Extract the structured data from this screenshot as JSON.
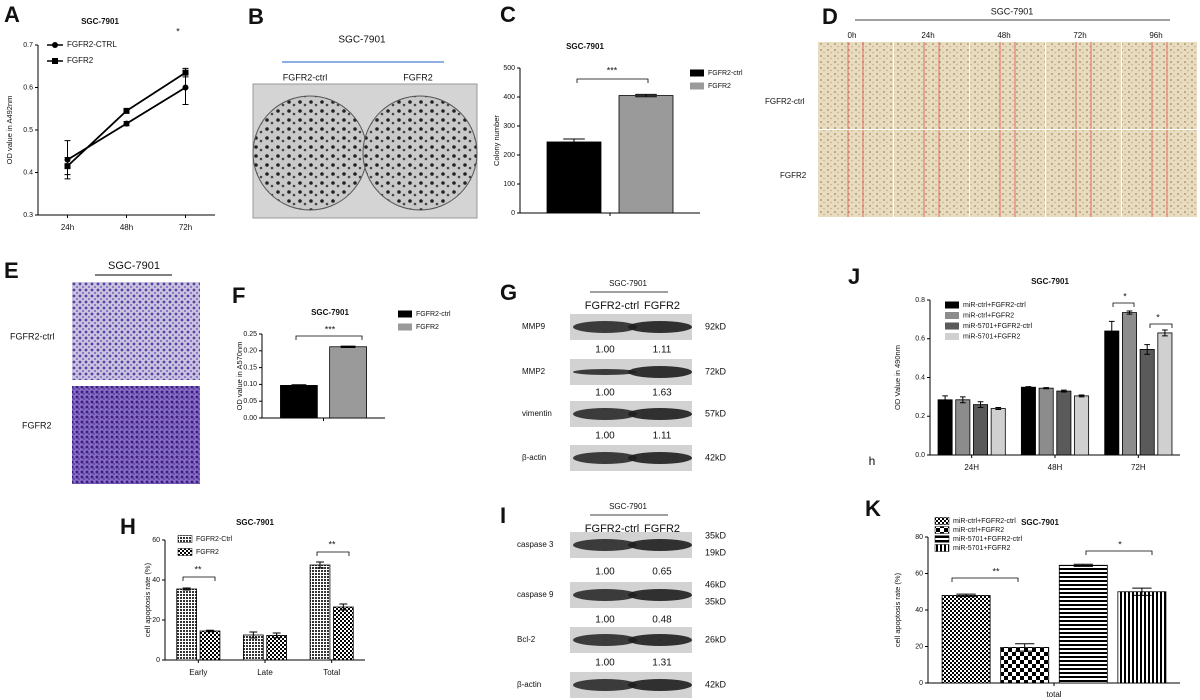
{
  "chart_data": [
    {
      "letter": "A",
      "type": "line",
      "title": "SGC-7901",
      "ylabel": "OD value in A492nm",
      "categories": [
        "24h",
        "48h",
        "72h"
      ],
      "series": [
        {
          "name": "FGFR2-CTRL",
          "color": "#000000",
          "marker": "circle",
          "values": [
            0.43,
            0.515,
            0.6
          ],
          "errors": [
            0.045,
            0.005,
            0.04
          ]
        },
        {
          "name": "FGFR2",
          "color": "#000000",
          "marker": "square",
          "values": [
            0.415,
            0.545,
            0.635
          ],
          "errors": [
            0.02,
            0.005,
            0.01
          ]
        }
      ],
      "ylim": [
        0.3,
        0.7
      ],
      "yticks": [
        0.3,
        0.4,
        0.5,
        0.6,
        0.7
      ],
      "annotations": [
        "*"
      ]
    },
    {
      "letter": "C",
      "type": "bar",
      "title": "SGC-7901",
      "ylabel": "Colony number",
      "categories": [
        null
      ],
      "series": [
        {
          "name": "FGFR2-ctrl",
          "color": "#000000",
          "values": [
            245
          ],
          "errors": [
            10
          ]
        },
        {
          "name": "FGFR2",
          "color": "#9a9a9a",
          "values": [
            405
          ],
          "errors": [
            4
          ]
        }
      ],
      "ylim": [
        0,
        500
      ],
      "yticks": [
        0,
        100,
        200,
        300,
        400,
        500
      ],
      "annotations": [
        "***"
      ]
    },
    {
      "letter": "F",
      "type": "bar",
      "title": "SGC-7901",
      "ylabel": "OD value in A570nm",
      "categories": [
        null
      ],
      "series": [
        {
          "name": "FGFR2-ctrl",
          "color": "#000000",
          "values": [
            0.097
          ],
          "errors": [
            0.002
          ]
        },
        {
          "name": "FGFR2",
          "color": "#9a9a9a",
          "values": [
            0.212
          ],
          "errors": [
            0.002
          ]
        }
      ],
      "ylim": [
        0,
        0.25
      ],
      "yticks": [
        {
          "value": 0,
          "label": "0.00"
        },
        {
          "value": 0.05,
          "label": "0.05"
        },
        {
          "value": 0.1,
          "label": "0.10"
        },
        {
          "value": 0.15,
          "label": "0.15"
        },
        {
          "value": 0.2,
          "label": "0.20"
        },
        {
          "value": 0.25,
          "label": "0.25"
        }
      ],
      "annotations": [
        "***"
      ]
    },
    {
      "letter": "H",
      "type": "bar",
      "title": "SGC-7901",
      "ylabel": "cell apoptosis rate (%)",
      "categories": [
        "Early",
        "Late",
        "Total"
      ],
      "series": [
        {
          "name": "FGFR2-Ctrl",
          "color": "#000000",
          "pattern": "hatch",
          "values": [
            35.5,
            12.5,
            47.5
          ],
          "errors": [
            0.5,
            1.5,
            1.5
          ]
        },
        {
          "name": "FGFR2",
          "color": "#000000",
          "pattern": "checker",
          "values": [
            14.5,
            12.3,
            26.5
          ],
          "errors": [
            0.4,
            1.2,
            1.5
          ]
        }
      ],
      "ylim": [
        0,
        60
      ],
      "yticks": [
        0,
        20,
        40,
        60
      ],
      "annotations": [
        "**",
        "**"
      ]
    },
    {
      "letter": "J",
      "type": "bar",
      "title": "SGC-7901",
      "ylabel": "OD Value in 490nm",
      "categories": [
        "24H",
        "48H",
        "72H"
      ],
      "series": [
        {
          "name": "miR-ctrl+FGFR2-ctrl",
          "color": "#000000",
          "values": [
            0.285,
            0.35,
            0.64
          ],
          "errors": [
            0.02,
            0.003,
            0.05
          ]
        },
        {
          "name": "miR-ctrl+FGFR2",
          "color": "#8c8c8c",
          "values": [
            0.285,
            0.345,
            0.735
          ],
          "errors": [
            0.015,
            0.003,
            0.008
          ]
        },
        {
          "name": "miR-5701+FGFR2-ctrl",
          "color": "#5a5a5a",
          "values": [
            0.26,
            0.33,
            0.545
          ],
          "errors": [
            0.015,
            0.005,
            0.025
          ]
        },
        {
          "name": "miR-5701+FGFR2",
          "color": "#d0d0d0",
          "values": [
            0.24,
            0.305,
            0.63
          ],
          "errors": [
            0.005,
            0.005,
            0.015
          ]
        }
      ],
      "ylim": [
        0,
        0.8
      ],
      "yticks": [
        {
          "value": 0,
          "label": "0.0"
        },
        0.2,
        0.4,
        0.6,
        0.8
      ],
      "annotations": [
        "*",
        "*",
        "h"
      ]
    },
    {
      "letter": "K",
      "type": "bar",
      "title": "SGC-7901",
      "ylabel": "cell apoptosis rate (%)",
      "xlabel": "total",
      "categories": [
        null
      ],
      "series": [
        {
          "name": "miR-ctrl+FGFR2-ctrl",
          "color": "#000000",
          "pattern": "checker",
          "values": [
            48
          ],
          "errors": [
            0.7
          ]
        },
        {
          "name": "miR-ctrl+FGFR2",
          "color": "#000000",
          "pattern": "bigchecker",
          "values": [
            19.5
          ],
          "errors": [
            2
          ]
        },
        {
          "name": "miR-5701+FGFR2-ctrl",
          "color": "#000000",
          "pattern": "hlines",
          "values": [
            64.5
          ],
          "errors": [
            0.6
          ]
        },
        {
          "name": "miR-5701+FGFR2",
          "color": "#000000",
          "pattern": "vlines",
          "values": [
            50
          ],
          "errors": [
            2
          ]
        }
      ],
      "ylim": [
        0,
        80
      ],
      "yticks": [
        0,
        20,
        40,
        60,
        80
      ],
      "annotations": [
        "**",
        "*"
      ]
    }
  ],
  "panels": {
    "B": {
      "letter": "B",
      "title": "SGC-7901",
      "labels": [
        "FGFR2-ctrl",
        "FGFR2"
      ]
    },
    "D": {
      "letter": "D",
      "title": "SGC-7901",
      "times": [
        "0h",
        "24h",
        "48h",
        "72h",
        "96h"
      ],
      "rows": [
        "FGFR2-ctrl",
        "FGFR2"
      ]
    },
    "E": {
      "letter": "E",
      "title": "SGC-7901",
      "rows": [
        "FGFR2-ctrl",
        "FGFR2"
      ]
    },
    "G": {
      "letter": "G",
      "title": "SGC-7901",
      "lanes": [
        "FGFR2-ctrl",
        "FGFR2"
      ],
      "rows": [
        {
          "name": "MMP9",
          "sizes": [
            "92kD"
          ],
          "ratios": [
            "1.00",
            "1.11"
          ]
        },
        {
          "name": "MMP2",
          "sizes": [
            "72kD"
          ],
          "ratios": [
            "1.00",
            "1.63"
          ]
        },
        {
          "name": "vimentin",
          "sizes": [
            "57kD"
          ],
          "ratios": [
            "1.00",
            "1.11"
          ]
        },
        {
          "name": "β-actin",
          "sizes": [
            "42kD"
          ]
        }
      ]
    },
    "I": {
      "letter": "I",
      "title": "SGC-7901",
      "lanes": [
        "FGFR2-ctrl",
        "FGFR2"
      ],
      "rows": [
        {
          "name": "caspase 3",
          "sizes": [
            "35kD",
            "19kD"
          ],
          "ratios": [
            "1.00",
            "0.65"
          ]
        },
        {
          "name": "caspase 9",
          "sizes": [
            "46kD",
            "35kD"
          ],
          "ratios": [
            "1.00",
            "0.48"
          ]
        },
        {
          "name": "Bcl-2",
          "sizes": [
            "26kD"
          ],
          "ratios": [
            "1.00",
            "1.31"
          ]
        },
        {
          "name": "β-actin",
          "sizes": [
            "42kD"
          ]
        }
      ]
    }
  }
}
